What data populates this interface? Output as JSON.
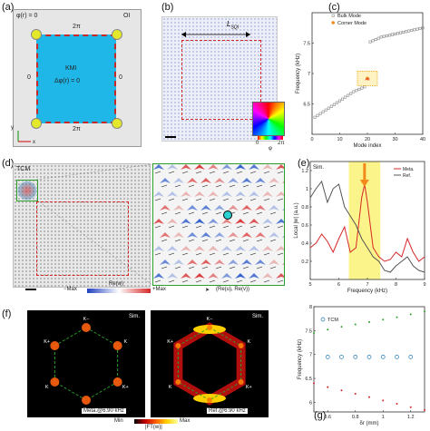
{
  "panels": {
    "a": {
      "label": "(a)",
      "phi_label": "φ(r) = 0",
      "corner_tag": "OI",
      "edge_top": "2π",
      "edge_bottom": "2π",
      "edge_left": "0",
      "edge_right": "0",
      "center_line1": "KMI",
      "center_line2": "Δφ(r) = 0",
      "axis_y": "y",
      "axis_x": "x"
    },
    "b": {
      "label": "(b)",
      "length_label": "L",
      "length_sub": "SQI",
      "cbar_min": "0",
      "cbar_max": "2π",
      "cbar_symbol": "φ"
    },
    "c": {
      "label": "(c)",
      "legend_bulk": "Bulk Mode",
      "legend_corner": "Corner Mode",
      "ylabel": "Frequency (kHz)",
      "xlabel": "Mode index",
      "inset_text": "AB"
    },
    "d": {
      "label": "(d)",
      "tag": "TCM",
      "legend_min": "−Max",
      "legend_center": "Re(w)",
      "legend_max": "+Max",
      "legend_arrow": "(Re(u), Re(v))",
      "probe": "S"
    },
    "e": {
      "label": "(e)",
      "tag": "Sim.",
      "legend_meta": "Meta.",
      "legend_ref": "Ref.",
      "ylabel": "Local |w| (a.u.)",
      "xlabel": "Frequency (kHz)"
    },
    "f": {
      "label": "(f)",
      "tag_left": "Sim.",
      "tag_right": "Sim.",
      "caption_left": "Meta.@6.90 kHz",
      "caption_right": "Ref.@6.90 kHz",
      "k_plus": "K+",
      "k_minus": "K−",
      "k": "K",
      "cbar_min": "Min",
      "cbar_label": "|FT(w)|",
      "cbar_max": "Max"
    },
    "g": {
      "label": "(g)",
      "legend": "TCM",
      "ylabel": "Frequency (kHz)",
      "xlabel": "δr (mm)"
    }
  },
  "chart_data": [
    {
      "type": "scatter",
      "panel": "c",
      "xlabel": "Mode index",
      "ylabel": "Frequency (kHz)",
      "xlim": [
        0,
        40
      ],
      "ylim": [
        6.0,
        8.0
      ],
      "xticks": [
        0,
        10,
        20,
        30,
        40
      ],
      "yticks": [
        6.5,
        7.0,
        7.5
      ],
      "series": [
        {
          "name": "Bulk Mode",
          "color": "#8a8a8a",
          "x": [
            1,
            2,
            3,
            4,
            5,
            6,
            7,
            8,
            9,
            10,
            11,
            12,
            13,
            14,
            15,
            16,
            17,
            18,
            19,
            21,
            22,
            23,
            24,
            25,
            26,
            27,
            28,
            29,
            30,
            31,
            32,
            33,
            34,
            35,
            36,
            37,
            38,
            39,
            40
          ],
          "y": [
            6.28,
            6.31,
            6.34,
            6.37,
            6.4,
            6.43,
            6.46,
            6.49,
            6.52,
            6.55,
            6.58,
            6.61,
            6.64,
            6.67,
            6.7,
            6.72,
            6.74,
            6.76,
            6.78,
            7.52,
            7.54,
            7.56,
            7.58,
            7.6,
            7.61,
            7.62,
            7.63,
            7.64,
            7.65,
            7.66,
            7.67,
            7.68,
            7.69,
            7.7,
            7.71,
            7.72,
            7.73,
            7.74,
            7.75
          ]
        },
        {
          "name": "Corner Mode",
          "color": "#f28a1c",
          "x": [
            20
          ],
          "y": [
            6.92
          ]
        }
      ]
    },
    {
      "type": "line",
      "panel": "e",
      "xlabel": "Frequency (kHz)",
      "ylabel": "Local |w| (a.u.)",
      "xlim": [
        5,
        9
      ],
      "ylim": [
        0,
        1.3
      ],
      "xticks": [
        5,
        6,
        7,
        8,
        9
      ],
      "yticks": [
        0.2,
        0.4,
        0.6,
        0.8,
        1.0,
        1.2
      ],
      "band": [
        6.35,
        7.45
      ],
      "series": [
        {
          "name": "Meta.",
          "color": "#d62728",
          "x": [
            5.0,
            5.2,
            5.4,
            5.6,
            5.8,
            6.0,
            6.2,
            6.4,
            6.6,
            6.8,
            6.9,
            7.0,
            7.2,
            7.4,
            7.6,
            7.8,
            8.0,
            8.2,
            8.4,
            8.6,
            8.8,
            9.0
          ],
          "y": [
            0.35,
            0.4,
            0.5,
            0.42,
            0.3,
            0.45,
            0.58,
            0.3,
            0.35,
            0.9,
            1.05,
            0.85,
            0.35,
            0.25,
            0.2,
            0.22,
            0.3,
            0.25,
            0.45,
            0.3,
            0.2,
            0.25
          ]
        },
        {
          "name": "Ref.",
          "color": "#555555",
          "x": [
            5.0,
            5.2,
            5.4,
            5.6,
            5.8,
            6.0,
            6.2,
            6.4,
            6.6,
            6.8,
            7.0,
            7.2,
            7.4,
            7.6,
            7.8,
            8.0,
            8.2,
            8.4,
            8.6,
            8.8,
            9.0
          ],
          "y": [
            0.9,
            1.0,
            1.08,
            0.85,
            1.0,
            1.05,
            0.8,
            0.7,
            0.6,
            0.45,
            0.35,
            0.25,
            0.2,
            0.1,
            0.08,
            0.15,
            0.2,
            0.25,
            0.15,
            0.1,
            0.08
          ]
        }
      ]
    },
    {
      "type": "scatter",
      "panel": "g",
      "xlabel": "δr (mm)",
      "ylabel": "Frequency (kHz)",
      "xlim": [
        0.5,
        1.3
      ],
      "ylim": [
        5.8,
        8.0
      ],
      "xticks": [
        0.6,
        0.8,
        1.0,
        1.2
      ],
      "yticks": [
        6.0,
        6.5,
        7.0,
        7.5,
        8.0
      ],
      "series": [
        {
          "name": "upper",
          "color": "#2ca02c",
          "x": [
            0.5,
            0.6,
            0.7,
            0.8,
            0.9,
            1.0,
            1.1,
            1.2,
            1.3
          ],
          "y": [
            7.45,
            7.52,
            7.58,
            7.63,
            7.68,
            7.73,
            7.78,
            7.84,
            7.9
          ]
        },
        {
          "name": "TCM",
          "color": "#1f77b4",
          "x": [
            0.6,
            0.7,
            0.8,
            0.9,
            1.0,
            1.1,
            1.2
          ],
          "y": [
            6.95,
            6.95,
            6.95,
            6.95,
            6.95,
            6.95,
            6.95
          ]
        },
        {
          "name": "lower",
          "color": "#d62728",
          "x": [
            0.5,
            0.6,
            0.7,
            0.8,
            0.9,
            1.0,
            1.1,
            1.2,
            1.3
          ],
          "y": [
            6.4,
            6.32,
            6.25,
            6.18,
            6.11,
            6.04,
            5.97,
            5.9,
            5.84
          ]
        }
      ]
    }
  ]
}
